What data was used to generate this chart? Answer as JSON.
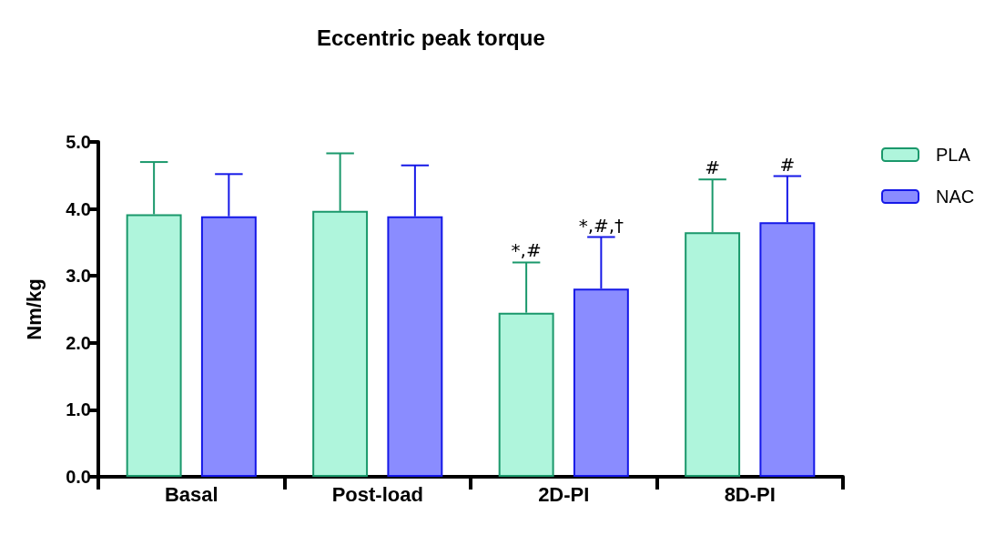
{
  "chart_data": {
    "type": "bar",
    "title": "Eccentric peak torque",
    "ylabel": "Nm/kg",
    "categories": [
      "Basal",
      "Post-load",
      "2D-PI",
      "8D-PI"
    ],
    "series": [
      {
        "name": "PLA",
        "color": "#aff5dc",
        "values": [
          3.92,
          3.97,
          2.45,
          3.65
        ],
        "errors": [
          [
            3.92,
            4.7
          ],
          [
            3.97,
            4.83
          ],
          [
            2.45,
            3.2
          ],
          [
            3.65,
            4.44
          ]
        ],
        "value_labels": [
          null,
          null,
          "*,#",
          "#"
        ]
      },
      {
        "name": "NAC",
        "color": "#8a8cff",
        "values": [
          3.89,
          3.89,
          2.81,
          3.8
        ],
        "errors": [
          [
            3.89,
            4.52
          ],
          [
            3.89,
            4.65
          ],
          [
            2.81,
            3.58
          ],
          [
            3.8,
            4.49
          ]
        ],
        "value_labels": [
          null,
          null,
          "*,#,†",
          "#"
        ]
      }
    ],
    "ylim": [
      0,
      5
    ],
    "yticks": [
      {
        "value": 0,
        "label": "0.0"
      },
      {
        "value": 1,
        "label": "1.0"
      },
      {
        "value": 2,
        "label": "2.0"
      },
      {
        "value": 3,
        "label": "3.0"
      },
      {
        "value": 4,
        "label": "4.0"
      },
      {
        "value": 5,
        "label": "5.0"
      }
    ],
    "grid": false,
    "legend": "right"
  }
}
